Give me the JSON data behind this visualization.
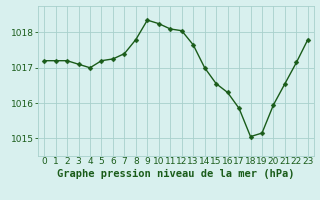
{
  "x": [
    0,
    1,
    2,
    3,
    4,
    5,
    6,
    7,
    8,
    9,
    10,
    11,
    12,
    13,
    14,
    15,
    16,
    17,
    18,
    19,
    20,
    21,
    22,
    23
  ],
  "y": [
    1017.2,
    1017.2,
    1017.2,
    1017.1,
    1017.0,
    1017.2,
    1017.25,
    1017.4,
    1017.8,
    1018.35,
    1018.25,
    1018.1,
    1018.05,
    1017.65,
    1017.0,
    1016.55,
    1016.3,
    1015.85,
    1015.05,
    1015.15,
    1015.95,
    1016.55,
    1017.15,
    1017.8
  ],
  "line_color": "#1a5c1a",
  "marker": "D",
  "marker_size": 2.5,
  "linewidth": 1.0,
  "bg_color": "#d8f0ee",
  "grid_color": "#a8d0cc",
  "xlabel": "Graphe pression niveau de la mer (hPa)",
  "tick_color": "#1a5c1a",
  "ylim": [
    1014.5,
    1018.75
  ],
  "yticks": [
    1015,
    1016,
    1017,
    1018
  ],
  "xlim": [
    -0.5,
    23.5
  ],
  "tick_fontsize": 6.5,
  "xlabel_fontsize": 7.5
}
